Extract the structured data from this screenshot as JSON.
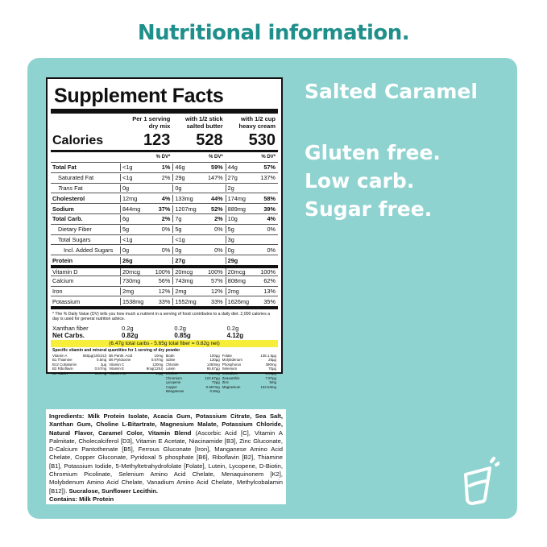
{
  "page_title": "Nutritional information.",
  "flavor": "Salted Caramel",
  "claims": [
    "Gluten free.",
    "Low carb.",
    "Sugar free."
  ],
  "icon": "cup-icon",
  "panel": {
    "title": "Supplement Facts",
    "columns": [
      {
        "line1": "Per 1 serving",
        "line2": "dry mix",
        "calories": "123"
      },
      {
        "line1": "with 1/2 stick",
        "line2": "salted butter",
        "calories": "528"
      },
      {
        "line1": "with 1/2 cup",
        "line2": "heavy cream",
        "calories": "530"
      }
    ],
    "calories_label": "Calories",
    "dv_label": "% DV*",
    "rows": [
      {
        "label": "Total Fat",
        "bold": true,
        "indent": 0,
        "values": [
          [
            "<1g",
            "1%"
          ],
          [
            "46g",
            "59%"
          ],
          [
            "44g",
            "57%"
          ]
        ]
      },
      {
        "label": "Saturated Fat",
        "bold": false,
        "indent": 1,
        "values": [
          [
            "<1g",
            "2%"
          ],
          [
            "29g",
            "147%"
          ],
          [
            "27g",
            "137%"
          ]
        ]
      },
      {
        "label": "Trans Fat",
        "bold": false,
        "indent": 1,
        "values": [
          [
            "0g",
            ""
          ],
          [
            "0g",
            ""
          ],
          [
            "2g",
            ""
          ]
        ]
      },
      {
        "label": "Cholesterol",
        "bold": true,
        "indent": 0,
        "values": [
          [
            "12mg",
            "4%"
          ],
          [
            "133mg",
            "44%"
          ],
          [
            "174mg",
            "58%"
          ]
        ]
      },
      {
        "label": "Sodium",
        "bold": true,
        "indent": 0,
        "values": [
          [
            "844mg",
            "37%"
          ],
          [
            "1207mg",
            "52%"
          ],
          [
            "889mg",
            "39%"
          ]
        ]
      },
      {
        "label": "Total Carb.",
        "bold": true,
        "indent": 0,
        "values": [
          [
            "6g",
            "2%"
          ],
          [
            "7g",
            "2%"
          ],
          [
            "10g",
            "4%"
          ]
        ]
      },
      {
        "label": "Dietary Fiber",
        "bold": false,
        "indent": 1,
        "values": [
          [
            "5g",
            "0%"
          ],
          [
            "5g",
            "0%"
          ],
          [
            "5g",
            "0%"
          ]
        ]
      },
      {
        "label": "Total Sugars",
        "bold": false,
        "indent": 1,
        "values": [
          [
            "<1g",
            ""
          ],
          [
            "<1g",
            ""
          ],
          [
            "3g",
            ""
          ]
        ]
      },
      {
        "label": "Incl. Added Sugars",
        "bold": false,
        "indent": 2,
        "values": [
          [
            "0g",
            "0%"
          ],
          [
            "0g",
            "0%"
          ],
          [
            "0g",
            "0%"
          ]
        ]
      },
      {
        "label": "Protein",
        "bold": true,
        "indent": 0,
        "values": [
          [
            "26g",
            ""
          ],
          [
            "27g",
            ""
          ],
          [
            "29g",
            ""
          ]
        ]
      },
      {
        "label": "Vitamin D",
        "bold": false,
        "indent": 0,
        "sep": true,
        "values": [
          [
            "20mcg",
            "100%"
          ],
          [
            "20mcg",
            "100%"
          ],
          [
            "20mcg",
            "100%"
          ]
        ]
      },
      {
        "label": "Calcium",
        "bold": false,
        "indent": 0,
        "values": [
          [
            "730mg",
            "56%"
          ],
          [
            "743mg",
            "57%"
          ],
          [
            "808mg",
            "62%"
          ]
        ]
      },
      {
        "label": "Iron",
        "bold": false,
        "indent": 0,
        "values": [
          [
            "2mg",
            "12%"
          ],
          [
            "2mg",
            "12%"
          ],
          [
            "2mg",
            "13%"
          ]
        ]
      },
      {
        "label": "Potassium",
        "bold": false,
        "indent": 0,
        "values": [
          [
            "1538mg",
            "33%"
          ],
          [
            "1552mg",
            "33%"
          ],
          [
            "1626mg",
            "35%"
          ]
        ]
      }
    ],
    "footnote": "* The % Daily Value (DV) tells you how much a nutrient in a serving of food contributes to a daily diet. 2,000 calories a day is used for general nutrition advice.",
    "xanthan_label": "Xanthan fiber",
    "xanthan": [
      "0.2g",
      "0.2g",
      "0.2g"
    ],
    "netcarbs_label": "Net Carbs.",
    "netcarbs": [
      "0.82g",
      "0.85g",
      "4.12g"
    ],
    "highlight": "(6.47g total carbs - 5.65g total fiber = 0.82g net)",
    "spec_title": "Specific vitamin and mineral quantities for 1 serving of dry powder",
    "spec": [
      [
        "Vitamin A",
        "550µg(1001IU)"
      ],
      [
        "B5 Panth. Acid",
        "10mg"
      ],
      [
        "Biotin",
        "100µg"
      ],
      [
        "Folate",
        "135.1.5µg"
      ],
      [
        "B1 Thiamine",
        "0.5mg"
      ],
      [
        "B6 Pyridoxine",
        "0.67mg"
      ],
      [
        "Iodine",
        "130µg"
      ],
      [
        "Molybdenum",
        "25µg"
      ],
      [
        "B12 Cobalamin",
        "2µg"
      ],
      [
        "Vitamin C",
        "120mg"
      ],
      [
        "Chloride",
        "1450mg"
      ],
      [
        "Phosphorus",
        "390mg"
      ],
      [
        "B2 Riboflavin",
        "0.57mg"
      ],
      [
        "Vitamin E",
        "8mg(12IU)"
      ],
      [
        "Lutein",
        "65.67µg"
      ],
      [
        "Selenium",
        "70µg"
      ],
      [
        "B3 Niacin",
        "6.67mg"
      ],
      [
        "Vitamin K2",
        "40µg"
      ],
      [
        "Choline",
        "205mg"
      ],
      [
        "Vanadium",
        "3.33µg"
      ],
      [
        "",
        ""
      ],
      [
        "",
        ""
      ],
      [
        "Chromium",
        "122.67µg"
      ],
      [
        "Zeaxanthin",
        "7.97µg"
      ],
      [
        "",
        ""
      ],
      [
        "",
        ""
      ],
      [
        "Lycopene",
        "72µg"
      ],
      [
        "Zinc",
        "5mg"
      ],
      [
        "",
        ""
      ],
      [
        "",
        ""
      ],
      [
        "Copper",
        "0.667mg"
      ],
      [
        "Magnesium",
        "132.63mg"
      ],
      [
        "",
        ""
      ],
      [
        "",
        ""
      ],
      [
        "Manganese",
        "0.8mg"
      ],
      [
        "",
        ""
      ]
    ]
  },
  "ingredients": {
    "label": "Ingredients:",
    "bold_text": "Milk Protein Isolate, Acacia Gum, Potassium Citrate, Sea Salt, Xanthan Gum, Choline L-Bitartrate, Magnesium Malate, Potassium Chloride, Natural Flavor, Caramel Color, Vitamin Blend",
    "normal_text": " (Ascorbic Acid [C], Vitamin A Palmitate, Cholecalciferol [D3], Vitamin E Acetate, Niacinamide [B3], Zinc Gluconate, D-Calcium Pantothenate [B5], Ferrous Gluconate [Iron], Manganese Amino Acid Chelate, Copper Gluconate, Pyridoxal 5 phosphate [B6], Riboflavin [B2], Thiamine [B1], Potassium Iodide, 5-Methyltetrahydrofolate [Folate], Lutein, Lycopene, D-Biotin, Chromium Picolinate, Selenium Amino Acid Chelate, Menaquinonem [K2], Molybdenum Amino Acid Chelate, Vanadium Amino Acid Chelate, Methylcobalamin [B12]). ",
    "tail_bold": "Sucralose, Sunflower Lecithin.",
    "contains": "Contains: Milk Protein"
  }
}
